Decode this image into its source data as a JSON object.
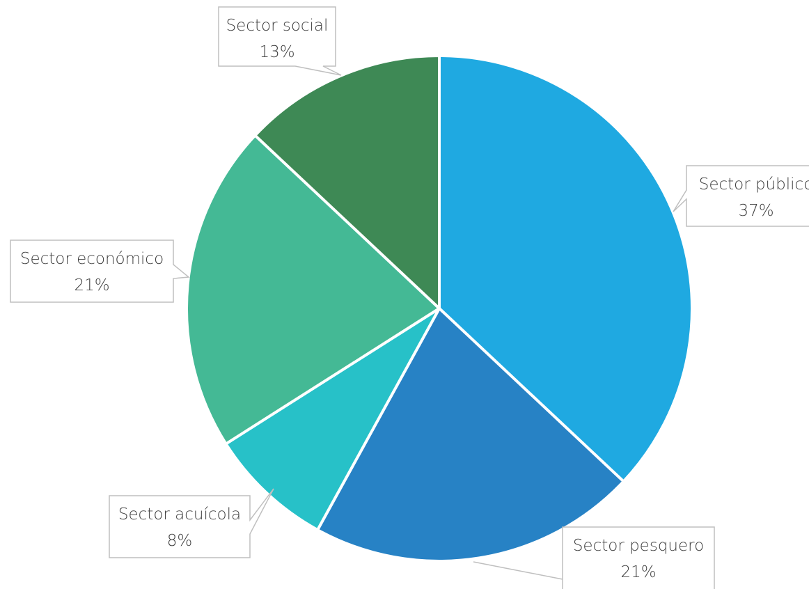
{
  "chart_data": {
    "type": "pie",
    "title": "",
    "slices": [
      {
        "label": "Sector público",
        "value": 37,
        "display": "37%",
        "color": "#1fa9e1"
      },
      {
        "label": "Sector pesquero",
        "value": 21,
        "display": "21%",
        "color": "#2782c5"
      },
      {
        "label": "Sector acuícola",
        "value": 8,
        "display": "8%",
        "color": "#27c1c8"
      },
      {
        "label": "Sector económico",
        "value": 21,
        "display": "21%",
        "color": "#44b995"
      },
      {
        "label": "Sector social",
        "value": 13,
        "display": "13%",
        "color": "#3e8955"
      }
    ],
    "start_angle": "12 o'clock",
    "direction": "clockwise",
    "legend": "none",
    "data_labels": "callouts"
  }
}
